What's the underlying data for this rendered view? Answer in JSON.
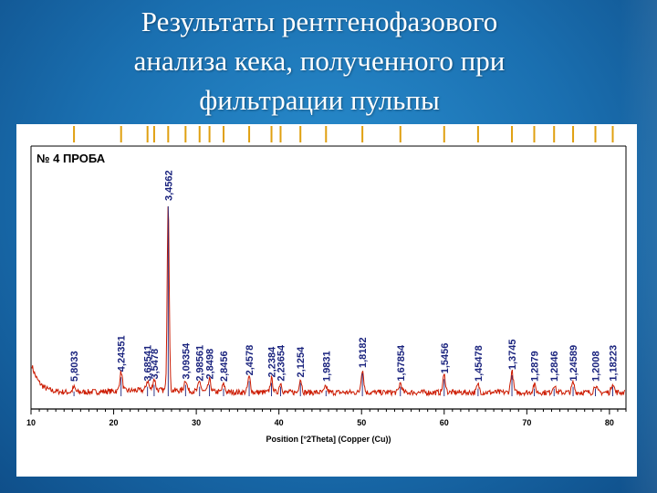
{
  "slide": {
    "title_lines": [
      "Результаты рентгенофазового",
      "анализа  кека, полученного при",
      "фильтрации пульпы"
    ]
  },
  "colors": {
    "pattern": "#cc1a00",
    "reference_sticks": "#e0a010",
    "peak_label": "#1a237e",
    "axis": "#000000"
  },
  "chart_data": {
    "type": "line",
    "sample_label": "№ 4 ПРОБА",
    "xlabel": "Position [°2Theta] (Copper (Cu))",
    "xlim": [
      10,
      82
    ],
    "x_ticks": [
      10,
      20,
      30,
      40,
      50,
      60,
      70,
      80
    ],
    "x_tick_labels": [
      "10",
      "20",
      "30",
      "40",
      "50",
      "60",
      "70",
      "80"
    ],
    "reference_positions": [
      15.2,
      20.9,
      24.1,
      24.9,
      26.6,
      28.7,
      30.4,
      31.6,
      33.3,
      36.4,
      39.1,
      40.2,
      42.6,
      45.7,
      50.1,
      54.7,
      60.0,
      64.1,
      68.2,
      70.9,
      73.3,
      75.6,
      78.3,
      80.4
    ],
    "peaks": [
      {
        "x": 15.2,
        "height": 0.025,
        "d": "5,8033"
      },
      {
        "x": 20.9,
        "height": 0.1,
        "d": "4,24351"
      },
      {
        "x": 24.1,
        "height": 0.05,
        "d": "3,68541"
      },
      {
        "x": 24.9,
        "height": 0.06,
        "d": "3,5478"
      },
      {
        "x": 26.6,
        "height": 1.0,
        "d": "3,4562"
      },
      {
        "x": 28.7,
        "height": 0.06,
        "d": "3,09354"
      },
      {
        "x": 30.4,
        "height": 0.05,
        "d": "2,98561"
      },
      {
        "x": 31.6,
        "height": 0.06,
        "d": "2,8498"
      },
      {
        "x": 33.3,
        "height": 0.04,
        "d": "2,8456"
      },
      {
        "x": 36.4,
        "height": 0.08,
        "d": "2,4578"
      },
      {
        "x": 39.1,
        "height": 0.07,
        "d": "2,2384"
      },
      {
        "x": 40.2,
        "height": 0.05,
        "d": "2,23654"
      },
      {
        "x": 42.6,
        "height": 0.07,
        "d": "2,1254"
      },
      {
        "x": 45.7,
        "height": 0.03,
        "d": "1,9831"
      },
      {
        "x": 50.1,
        "height": 0.12,
        "d": "1,8182"
      },
      {
        "x": 54.7,
        "height": 0.05,
        "d": "1,67854"
      },
      {
        "x": 60.0,
        "height": 0.09,
        "d": "1,5456"
      },
      {
        "x": 64.1,
        "height": 0.04,
        "d": "1,45478"
      },
      {
        "x": 68.2,
        "height": 0.11,
        "d": "1,3745"
      },
      {
        "x": 70.9,
        "height": 0.04,
        "d": "1,2879"
      },
      {
        "x": 73.3,
        "height": 0.04,
        "d": "1,2846"
      },
      {
        "x": 75.6,
        "height": 0.05,
        "d": "1,24589"
      },
      {
        "x": 78.3,
        "height": 0.04,
        "d": "1,2008"
      },
      {
        "x": 80.4,
        "height": 0.05,
        "d": "1,18223"
      }
    ]
  }
}
